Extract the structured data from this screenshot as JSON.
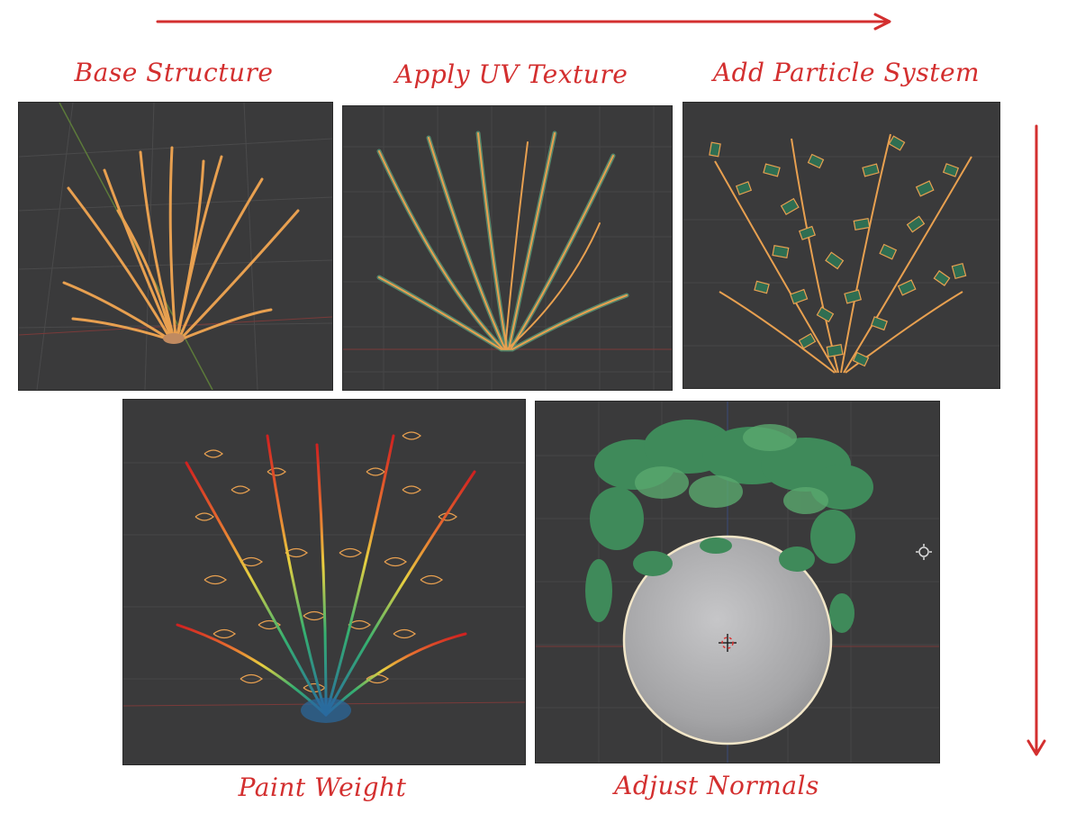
{
  "flow": {
    "colors": {
      "arrow": "#d32f2f",
      "label": "#d32f2f",
      "viewport_bg": "#3a3a3b"
    }
  },
  "steps": [
    {
      "label": "Base Structure"
    },
    {
      "label": "Apply UV Texture"
    },
    {
      "label": "Add Particle System"
    },
    {
      "label": "Paint Weight"
    },
    {
      "label": "Adjust Normals"
    }
  ]
}
